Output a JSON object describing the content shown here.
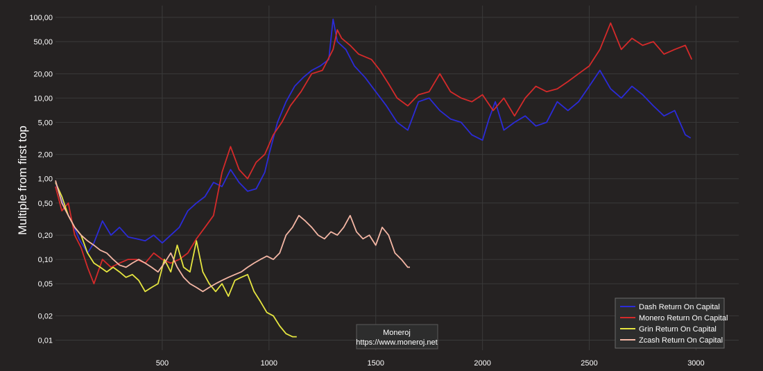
{
  "chart_data": {
    "type": "line",
    "ylabel": "Multiple from first top",
    "xlabel": "",
    "yscale": "log",
    "xlim": [
      0,
      3200
    ],
    "ylim": [
      0.0075,
      140
    ],
    "grid": true,
    "legend_position": "bottom-right",
    "x_ticks": [
      500,
      1000,
      1500,
      2000,
      2500,
      3000
    ],
    "y_ticks": [
      {
        "value": 100,
        "label": "100,00"
      },
      {
        "value": 50,
        "label": "50,00"
      },
      {
        "value": 20,
        "label": "20,00"
      },
      {
        "value": 10,
        "label": "10,00"
      },
      {
        "value": 5,
        "label": "5,00"
      },
      {
        "value": 2,
        "label": "2,00"
      },
      {
        "value": 1,
        "label": "1,00"
      },
      {
        "value": 0.5,
        "label": "0,50"
      },
      {
        "value": 0.2,
        "label": "0,20"
      },
      {
        "value": 0.1,
        "label": "0,10"
      },
      {
        "value": 0.05,
        "label": "0,05"
      },
      {
        "value": 0.02,
        "label": "0,02"
      },
      {
        "value": 0.01,
        "label": "0,01"
      }
    ],
    "series": [
      {
        "name": "Dash Return On Capital",
        "color": "#2b2bd8",
        "x": [
          0,
          40,
          80,
          110,
          150,
          180,
          220,
          260,
          300,
          340,
          380,
          420,
          460,
          500,
          540,
          580,
          620,
          660,
          700,
          740,
          780,
          820,
          860,
          900,
          940,
          980,
          1000,
          1040,
          1080,
          1120,
          1160,
          1200,
          1240,
          1280,
          1300,
          1320,
          1360,
          1400,
          1450,
          1500,
          1550,
          1600,
          1650,
          1700,
          1750,
          1800,
          1850,
          1900,
          1950,
          2000,
          2030,
          2060,
          2100,
          2150,
          2200,
          2250,
          2300,
          2350,
          2400,
          2450,
          2500,
          2550,
          2600,
          2650,
          2700,
          2750,
          2800,
          2850,
          2900,
          2950,
          2975
        ],
        "y": [
          0.9,
          0.45,
          0.28,
          0.18,
          0.12,
          0.16,
          0.3,
          0.2,
          0.25,
          0.19,
          0.18,
          0.17,
          0.2,
          0.16,
          0.2,
          0.25,
          0.4,
          0.5,
          0.6,
          0.9,
          0.8,
          1.3,
          0.9,
          0.7,
          0.75,
          1.2,
          2.0,
          5.0,
          9.0,
          14.0,
          18.0,
          22.0,
          25.0,
          30.0,
          95.0,
          50.0,
          40.0,
          25.0,
          18.0,
          12.0,
          8.0,
          5.0,
          4.0,
          9.0,
          10.0,
          7.0,
          5.5,
          5.0,
          3.5,
          3.0,
          5.5,
          9.0,
          4.0,
          5.0,
          6.0,
          4.5,
          5.0,
          9.0,
          7.0,
          9.0,
          14.0,
          22.0,
          13.0,
          10.0,
          14.0,
          11.0,
          8.0,
          6.0,
          7.0,
          3.5,
          3.2
        ]
      },
      {
        "name": "Monero Return On Capital",
        "color": "#d52a2a",
        "x": [
          0,
          30,
          60,
          90,
          120,
          150,
          180,
          220,
          260,
          300,
          340,
          380,
          420,
          460,
          500,
          540,
          580,
          620,
          660,
          700,
          740,
          780,
          820,
          860,
          900,
          940,
          980,
          1020,
          1060,
          1100,
          1150,
          1200,
          1250,
          1300,
          1320,
          1340,
          1380,
          1420,
          1480,
          1520,
          1560,
          1600,
          1650,
          1700,
          1750,
          1800,
          1850,
          1900,
          1950,
          2000,
          2050,
          2100,
          2150,
          2200,
          2250,
          2300,
          2350,
          2400,
          2450,
          2500,
          2550,
          2600,
          2650,
          2700,
          2750,
          2800,
          2850,
          2900,
          2950,
          2980
        ],
        "y": [
          0.8,
          0.4,
          0.5,
          0.2,
          0.14,
          0.08,
          0.05,
          0.1,
          0.08,
          0.09,
          0.1,
          0.1,
          0.09,
          0.12,
          0.1,
          0.09,
          0.1,
          0.12,
          0.18,
          0.25,
          0.35,
          1.2,
          2.5,
          1.3,
          1.0,
          1.6,
          2.0,
          3.5,
          5.0,
          8.0,
          12.0,
          20.0,
          22.0,
          40.0,
          70.0,
          55.0,
          45.0,
          35.0,
          30.0,
          22.0,
          15.0,
          10.0,
          8.0,
          11.0,
          12.0,
          20.0,
          12.0,
          10.0,
          9.0,
          11.0,
          7.0,
          10.0,
          6.0,
          10.0,
          14.0,
          12.0,
          13.0,
          16.0,
          20.0,
          25.0,
          40.0,
          85.0,
          40.0,
          55.0,
          45.0,
          50.0,
          35.0,
          40.0,
          45.0,
          30.0
        ]
      },
      {
        "name": "Grin Return On Capital",
        "color": "#e6e640",
        "x": [
          0,
          30,
          60,
          90,
          120,
          150,
          180,
          210,
          240,
          270,
          300,
          330,
          360,
          390,
          420,
          450,
          480,
          510,
          540,
          570,
          600,
          630,
          660,
          690,
          720,
          750,
          780,
          810,
          840,
          870,
          900,
          930,
          960,
          990,
          1020,
          1050,
          1080,
          1110,
          1130
        ],
        "y": [
          0.9,
          0.6,
          0.35,
          0.25,
          0.2,
          0.12,
          0.09,
          0.08,
          0.07,
          0.08,
          0.07,
          0.06,
          0.065,
          0.055,
          0.04,
          0.045,
          0.05,
          0.1,
          0.07,
          0.15,
          0.08,
          0.07,
          0.17,
          0.07,
          0.05,
          0.04,
          0.05,
          0.035,
          0.055,
          0.06,
          0.065,
          0.04,
          0.03,
          0.022,
          0.02,
          0.015,
          0.012,
          0.011,
          0.011
        ]
      },
      {
        "name": "Zcash Return On Capital",
        "color": "#f5b7a5",
        "x": [
          0,
          30,
          60,
          90,
          120,
          150,
          180,
          210,
          240,
          270,
          300,
          330,
          360,
          390,
          420,
          450,
          480,
          510,
          540,
          570,
          600,
          630,
          660,
          690,
          720,
          750,
          780,
          810,
          840,
          870,
          900,
          930,
          960,
          990,
          1020,
          1050,
          1080,
          1110,
          1140,
          1170,
          1200,
          1230,
          1260,
          1290,
          1320,
          1350,
          1380,
          1410,
          1440,
          1470,
          1500,
          1530,
          1560,
          1590,
          1620,
          1650,
          1660
        ],
        "y": [
          0.95,
          0.5,
          0.35,
          0.25,
          0.2,
          0.17,
          0.15,
          0.13,
          0.12,
          0.1,
          0.085,
          0.08,
          0.09,
          0.1,
          0.09,
          0.08,
          0.07,
          0.09,
          0.12,
          0.08,
          0.06,
          0.05,
          0.045,
          0.04,
          0.045,
          0.05,
          0.055,
          0.06,
          0.065,
          0.07,
          0.08,
          0.09,
          0.1,
          0.11,
          0.1,
          0.12,
          0.2,
          0.25,
          0.35,
          0.3,
          0.25,
          0.2,
          0.18,
          0.22,
          0.2,
          0.25,
          0.35,
          0.22,
          0.18,
          0.2,
          0.15,
          0.25,
          0.2,
          0.12,
          0.1,
          0.08,
          0.08
        ]
      }
    ],
    "watermark": {
      "line1": "Moneroj",
      "line2": "https://www.moneroj.net"
    }
  }
}
